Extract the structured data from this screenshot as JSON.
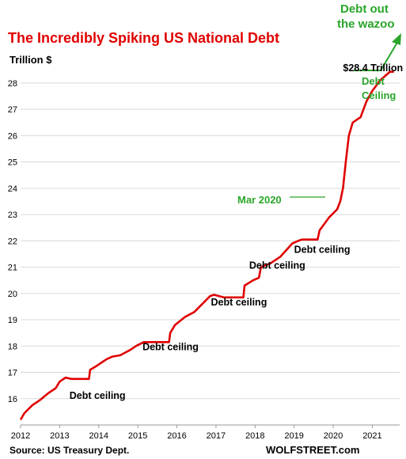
{
  "chart_data": {
    "type": "line",
    "title": "The Incredibly Spiking US National Debt",
    "ylabel": "Trillion $",
    "xlabel": "",
    "xlim": [
      2012.0,
      2021.7
    ],
    "ylim": [
      15,
      28.6
    ],
    "grid": "horizontal",
    "x_ticks": [
      {
        "value": 2012,
        "label": "2012"
      },
      {
        "value": 2013,
        "label": "2013"
      },
      {
        "value": 2014,
        "label": "2014"
      },
      {
        "value": 2015,
        "label": "2015"
      },
      {
        "value": 2016,
        "label": "2016"
      },
      {
        "value": 2017,
        "label": "2017"
      },
      {
        "value": 2018,
        "label": "2018"
      },
      {
        "value": 2019,
        "label": "2019"
      },
      {
        "value": 2020,
        "label": "2020"
      },
      {
        "value": 2021,
        "label": "2021"
      }
    ],
    "y_ticks": [
      {
        "value": 16,
        "label": "16"
      },
      {
        "value": 17,
        "label": "17"
      },
      {
        "value": 18,
        "label": "18"
      },
      {
        "value": 19,
        "label": "19"
      },
      {
        "value": 20,
        "label": "20"
      },
      {
        "value": 21,
        "label": "21"
      },
      {
        "value": 22,
        "label": "22"
      },
      {
        "value": 23,
        "label": "23"
      },
      {
        "value": 24,
        "label": "24"
      },
      {
        "value": 25,
        "label": "25"
      },
      {
        "value": 26,
        "label": "26"
      },
      {
        "value": 27,
        "label": "27"
      },
      {
        "value": 28,
        "label": "28"
      }
    ],
    "series": [
      {
        "color": "#e00000",
        "points": [
          [
            2012.0,
            15.2
          ],
          [
            2012.1,
            15.45
          ],
          [
            2012.3,
            15.75
          ],
          [
            2012.5,
            15.95
          ],
          [
            2012.7,
            16.2
          ],
          [
            2012.9,
            16.4
          ],
          [
            2013.0,
            16.65
          ],
          [
            2013.15,
            16.8
          ],
          [
            2013.3,
            16.75
          ],
          [
            2013.75,
            16.75
          ],
          [
            2013.78,
            17.1
          ],
          [
            2013.95,
            17.25
          ],
          [
            2014.2,
            17.5
          ],
          [
            2014.35,
            17.6
          ],
          [
            2014.55,
            17.65
          ],
          [
            2014.8,
            17.85
          ],
          [
            2014.95,
            18.0
          ],
          [
            2015.15,
            18.15
          ],
          [
            2015.25,
            18.15
          ],
          [
            2015.8,
            18.15
          ],
          [
            2015.83,
            18.5
          ],
          [
            2015.95,
            18.8
          ],
          [
            2016.2,
            19.1
          ],
          [
            2016.45,
            19.3
          ],
          [
            2016.65,
            19.6
          ],
          [
            2016.85,
            19.9
          ],
          [
            2016.95,
            19.95
          ],
          [
            2017.2,
            19.85
          ],
          [
            2017.7,
            19.85
          ],
          [
            2017.73,
            20.3
          ],
          [
            2017.95,
            20.5
          ],
          [
            2018.1,
            20.6
          ],
          [
            2018.15,
            21.0
          ],
          [
            2018.4,
            21.15
          ],
          [
            2018.65,
            21.4
          ],
          [
            2018.95,
            21.9
          ],
          [
            2019.1,
            22.0
          ],
          [
            2019.2,
            22.05
          ],
          [
            2019.6,
            22.05
          ],
          [
            2019.65,
            22.4
          ],
          [
            2019.9,
            22.9
          ],
          [
            2020.1,
            23.2
          ],
          [
            2020.18,
            23.5
          ],
          [
            2020.25,
            24.0
          ],
          [
            2020.32,
            25.0
          ],
          [
            2020.4,
            26.0
          ],
          [
            2020.5,
            26.5
          ],
          [
            2020.7,
            26.7
          ],
          [
            2020.85,
            27.3
          ],
          [
            2021.0,
            27.7
          ],
          [
            2021.2,
            28.1
          ],
          [
            2021.35,
            28.3
          ],
          [
            2021.45,
            28.43
          ],
          [
            2021.55,
            28.43
          ]
        ]
      }
    ],
    "annotations": [
      {
        "text": "$28.4 Trillion",
        "x": 2020.25,
        "y": 28.45
      },
      {
        "text": "Debt ceiling",
        "x": 2013.25,
        "y": 16.0
      },
      {
        "text": "Debt ceiling",
        "x": 2015.12,
        "y": 17.85
      },
      {
        "text": "Debt ceiling",
        "x": 2016.87,
        "y": 19.55
      },
      {
        "text": "Debt ceiling",
        "x": 2017.85,
        "y": 20.95
      },
      {
        "text": "Debt ceiling",
        "x": 2019.0,
        "y": 21.55
      }
    ],
    "green_annotations": {
      "mar_label": "Mar 2020",
      "ceiling_line1": "Debt",
      "ceiling_line2": "Ceiling",
      "wazoo_line1": "Debt out",
      "wazoo_line2": "the wazoo"
    },
    "source": "Source: US Treasury Dept.",
    "brand": "WOLFSTREET.com"
  },
  "colors": {
    "line": "#e00000",
    "green": "#2aa52a",
    "grid": "#d9d9d9"
  }
}
